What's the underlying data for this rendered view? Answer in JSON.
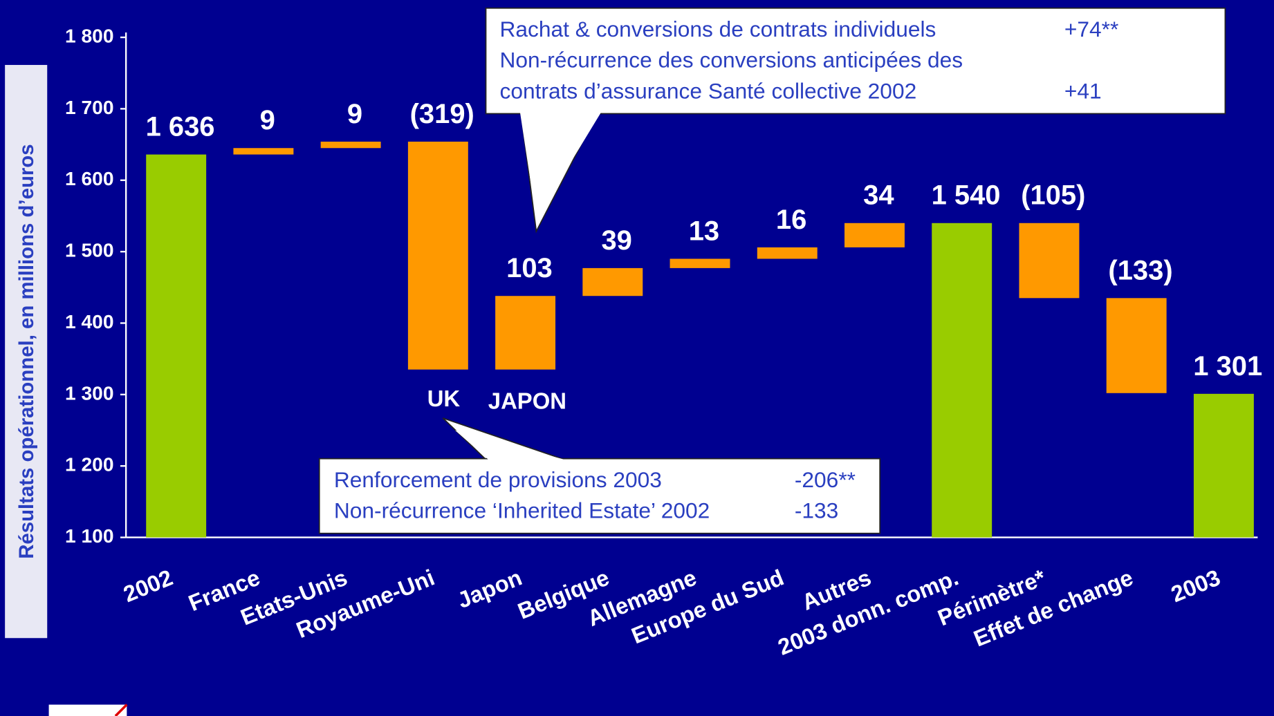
{
  "chart_data": {
    "type": "waterfall",
    "y_label": "Résultats opérationnel, en millions d’euros",
    "categories": [
      "2002",
      "France",
      "Etats-Unis",
      "Royaume-Uni",
      "Japon",
      "Belgique",
      "Allemagne",
      "Europe du Sud",
      "Autres",
      "2003 donn. comp.",
      "Périmètre*",
      "Effet de change",
      "2003"
    ],
    "values": [
      1636,
      9,
      9,
      -319,
      103,
      39,
      13,
      16,
      34,
      1540,
      -105,
      -133,
      1301
    ],
    "value_labels": [
      "1 636",
      "9",
      "9",
      "(319)",
      "103",
      "39",
      "13",
      "16",
      "34",
      "1 540",
      "(105)",
      "(133)",
      "1 301"
    ],
    "totals": [
      0,
      9,
      12
    ],
    "total_color": "#99cc00",
    "delta_color": "#ff9900",
    "ylim": [
      1100,
      1800
    ],
    "yticks": [
      {
        "value": 1100,
        "label": "1 100"
      },
      {
        "value": 1200,
        "label": "1 200"
      },
      {
        "value": 1300,
        "label": "1 300"
      },
      {
        "value": 1400,
        "label": "1 400"
      },
      {
        "value": 1500,
        "label": "1 500"
      },
      {
        "value": 1600,
        "label": "1 600"
      },
      {
        "value": 1700,
        "label": "1 700"
      },
      {
        "value": 1800,
        "label": "1 800"
      }
    ],
    "annotations": [
      "UK",
      "JAPON"
    ],
    "callouts": [
      {
        "rows": [
          [
            "Rachat & conversions de contrats individuels",
            "+74**"
          ],
          [
            "Non-récurrence des conversions anticipées des",
            ""
          ],
          [
            "contrats d’assurance Santé collective 2002",
            "+41"
          ]
        ]
      },
      {
        "rows": [
          [
            "Renforcement de provisions 2003",
            "-206**"
          ],
          [
            "Non-récurrence ‘Inherited Estate’ 2002",
            "-133"
          ]
        ]
      }
    ]
  }
}
